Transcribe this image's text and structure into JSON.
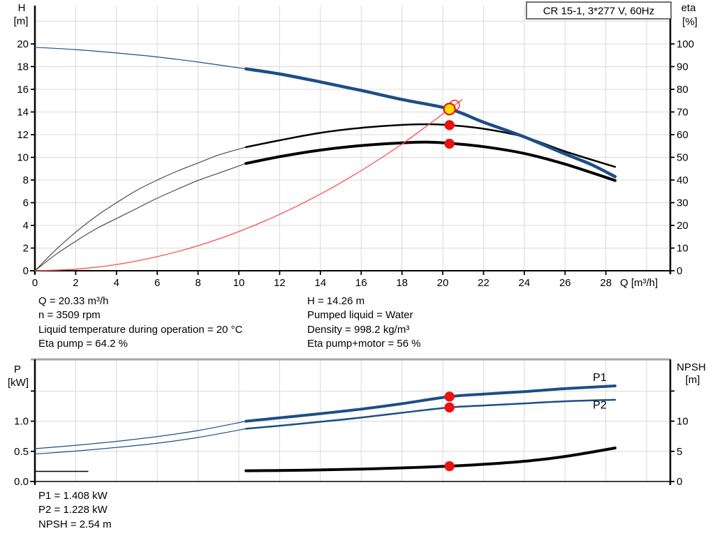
{
  "annotations": {
    "mid_left": [
      "Q = 20.33 m³/h",
      "n = 3509 rpm",
      "Liquid temperature during operation = 20 °C",
      "Eta pump = 64.2 %"
    ],
    "mid_right": [
      "H = 14.26 m",
      "Pumped liquid = Water",
      "Density = 998.2 kg/m³",
      "Eta pump+motor = 56 %"
    ],
    "bottom": [
      "P1 = 1.408 kW",
      "P2 = 1.228 kW",
      "NPSH = 2.54 m"
    ]
  },
  "colors": {
    "curve_navy": "#1c4e87",
    "curve_black": "#000000",
    "curve_gray": "#4a4a4a",
    "system_red": "#ff4d4d",
    "dot_red": "#ee1111",
    "duty_yellow": "#ffdf00",
    "grid": "#d9d9d9",
    "top_border_gray": "#a6a6a6",
    "label_blue": "#2a5d9f"
  },
  "chart_data": [
    {
      "id": "head-efficiency-chart",
      "type": "line",
      "title_box": "CR 15-1, 3*277 V, 60Hz",
      "x_axis": {
        "label": "Q [m³/h]",
        "min": 0,
        "max": 31.16,
        "ticks": [
          {
            "v": 0,
            "t": "0"
          },
          {
            "v": 2,
            "t": "2"
          },
          {
            "v": 4,
            "t": "4"
          },
          {
            "v": 6,
            "t": "6"
          },
          {
            "v": 8,
            "t": "8"
          },
          {
            "v": 10,
            "t": "10"
          },
          {
            "v": 12,
            "t": "12"
          },
          {
            "v": 14,
            "t": "14"
          },
          {
            "v": 16,
            "t": "16"
          },
          {
            "v": 18,
            "t": "18"
          },
          {
            "v": 20,
            "t": "20"
          },
          {
            "v": 22,
            "t": "22"
          },
          {
            "v": 24,
            "t": "24"
          },
          {
            "v": 26,
            "t": "26"
          },
          {
            "v": 28,
            "t": "28"
          }
        ],
        "grid": [
          2,
          4,
          6,
          8,
          10,
          12,
          14,
          16,
          18,
          20,
          22,
          24,
          26,
          28,
          30
        ]
      },
      "left_axis": {
        "name": "H",
        "unit": "[m]",
        "min": 0,
        "max": 23.38,
        "ticks": [
          {
            "v": 0,
            "t": "0"
          },
          {
            "v": 2,
            "t": "2"
          },
          {
            "v": 4,
            "t": "4"
          },
          {
            "v": 6,
            "t": "6"
          },
          {
            "v": 8,
            "t": "8"
          },
          {
            "v": 10,
            "t": "10"
          },
          {
            "v": 12,
            "t": "12"
          },
          {
            "v": 14,
            "t": "14"
          },
          {
            "v": 16,
            "t": "16"
          },
          {
            "v": 18,
            "t": "18"
          },
          {
            "v": 20,
            "t": "20"
          }
        ],
        "grid": [
          2,
          4,
          6,
          8,
          10,
          12,
          14,
          16,
          18,
          20,
          22
        ]
      },
      "right_axis": {
        "name": "eta",
        "unit": "[%]",
        "min": 0,
        "max": 116.9,
        "ticks": [
          {
            "v": 0,
            "t": "0"
          },
          {
            "v": 10,
            "t": "10"
          },
          {
            "v": 20,
            "t": "20"
          },
          {
            "v": 30,
            "t": "30"
          },
          {
            "v": 40,
            "t": "40"
          },
          {
            "v": 50,
            "t": "50"
          },
          {
            "v": 60,
            "t": "60"
          },
          {
            "v": 70,
            "t": "70"
          },
          {
            "v": 80,
            "t": "80"
          },
          {
            "v": 90,
            "t": "90"
          },
          {
            "v": 100,
            "t": "100"
          }
        ]
      },
      "series": [
        {
          "name": "head-curve-extension",
          "axis": "left",
          "color": "#1c4e87",
          "width": 1.2,
          "points": [
            [
              0,
              19.7
            ],
            [
              2,
              19.5
            ],
            [
              4,
              19.2
            ],
            [
              6,
              18.85
            ],
            [
              8,
              18.4
            ],
            [
              10.35,
              17.8
            ]
          ]
        },
        {
          "name": "eta-pump-curve-extension",
          "axis": "right",
          "color": "#4a4a4a",
          "width": 1.2,
          "points": [
            [
              0,
              0
            ],
            [
              1,
              9
            ],
            [
              2,
              17
            ],
            [
              3,
              24
            ],
            [
              4,
              30
            ],
            [
              5,
              35.5
            ],
            [
              6,
              40
            ],
            [
              7,
              44
            ],
            [
              8,
              47.5
            ],
            [
              9,
              51
            ],
            [
              10.35,
              54.5
            ]
          ]
        },
        {
          "name": "eta-pump-motor-curve-extension",
          "axis": "right",
          "color": "#4a4a4a",
          "width": 1.2,
          "points": [
            [
              0,
              0
            ],
            [
              1,
              7
            ],
            [
              2,
              13
            ],
            [
              3,
              18.5
            ],
            [
              4,
              23
            ],
            [
              5,
              27.5
            ],
            [
              6,
              32
            ],
            [
              7,
              36
            ],
            [
              8,
              39.8
            ],
            [
              9,
              43
            ],
            [
              10.35,
              47.3
            ]
          ]
        },
        {
          "name": "eta-pump-curve",
          "axis": "right",
          "color": "#000000",
          "width": 2.5,
          "points": [
            [
              10.35,
              54.5
            ],
            [
              12,
              57.5
            ],
            [
              14,
              60.8
            ],
            [
              16,
              63
            ],
            [
              18,
              64.3
            ],
            [
              19.3,
              64.6
            ],
            [
              20.33,
              64.2
            ],
            [
              22,
              62.6
            ],
            [
              24,
              59
            ],
            [
              26,
              52.6
            ],
            [
              28.45,
              45.8
            ]
          ]
        },
        {
          "name": "eta-pump-motor-curve",
          "axis": "right",
          "color": "#000000",
          "width": 4,
          "points": [
            [
              10.35,
              47.3
            ],
            [
              12,
              50.3
            ],
            [
              14,
              53.2
            ],
            [
              16,
              55.2
            ],
            [
              18,
              56.4
            ],
            [
              19.3,
              56.7
            ],
            [
              20.33,
              56.2
            ],
            [
              22,
              54.7
            ],
            [
              24,
              51.7
            ],
            [
              26,
              47
            ],
            [
              28.45,
              39.8
            ]
          ]
        },
        {
          "name": "head-curve",
          "axis": "left",
          "color": "#1c4e87",
          "width": 4.5,
          "points": [
            [
              10.35,
              17.8
            ],
            [
              12,
              17.35
            ],
            [
              14,
              16.65
            ],
            [
              16,
              15.9
            ],
            [
              18,
              15.1
            ],
            [
              20.33,
              14.26
            ],
            [
              22,
              13.1
            ],
            [
              24,
              11.8
            ],
            [
              26,
              10.3
            ],
            [
              27.3,
              9.35
            ],
            [
              28.45,
              8.3
            ]
          ]
        },
        {
          "name": "system-curve",
          "axis": "left",
          "color": "#ff4d4d",
          "width": 1.3,
          "points": [
            [
              0,
              0
            ],
            [
              2,
              0.14
            ],
            [
              4,
              0.55
            ],
            [
              6,
              1.24
            ],
            [
              8,
              2.21
            ],
            [
              10,
              3.45
            ],
            [
              12,
              4.97
            ],
            [
              14,
              6.76
            ],
            [
              16,
              8.83
            ],
            [
              18,
              11.17
            ],
            [
              20.33,
              14.26
            ],
            [
              20.95,
              15.1
            ]
          ]
        }
      ],
      "markers": [
        {
          "name": "eta-pump-duty-dot",
          "style": "dot",
          "q": 20.33,
          "axis": "right",
          "v": 64.2
        },
        {
          "name": "eta-pump-motor-duty-dot",
          "style": "dot",
          "q": 20.33,
          "axis": "right",
          "v": 56.0
        },
        {
          "name": "requested-duty-circle",
          "style": "ring",
          "q": 20.58,
          "axis": "left",
          "v": 14.6
        },
        {
          "name": "duty-point",
          "style": "duty",
          "q": 20.33,
          "axis": "left",
          "v": 14.26
        }
      ],
      "labels": []
    },
    {
      "id": "power-npsh-chart",
      "type": "line",
      "x_axis": {
        "label": "",
        "min": 0,
        "max": 31.16,
        "ticks": [],
        "grid": [
          2,
          4,
          6,
          8,
          10,
          12,
          14,
          16,
          18,
          20,
          22,
          24,
          26,
          28,
          30
        ]
      },
      "left_axis": {
        "name": "P",
        "unit": "[kW]",
        "min": 0,
        "max": 2.025,
        "ticks": [
          {
            "v": 0,
            "t": "0.0"
          },
          {
            "v": 0.5,
            "t": "0.5"
          },
          {
            "v": 1,
            "t": "1.0"
          },
          {
            "v": 1.5,
            "t": ""
          }
        ],
        "grid": [
          0.5,
          1,
          1.5
        ]
      },
      "right_axis": {
        "name": "NPSH",
        "unit": "[m]",
        "min": 0,
        "max": 20.25,
        "ticks": [
          {
            "v": 0,
            "t": "0"
          },
          {
            "v": 5,
            "t": "5"
          },
          {
            "v": 10,
            "t": "10"
          },
          {
            "v": 15,
            "t": ""
          }
        ]
      },
      "series": [
        {
          "name": "p1-curve-extension",
          "axis": "left",
          "color": "#1c4e87",
          "width": 1.2,
          "points": [
            [
              0,
              0.545
            ],
            [
              2,
              0.6
            ],
            [
              4,
              0.665
            ],
            [
              6,
              0.745
            ],
            [
              8,
              0.845
            ],
            [
              10.35,
              1.0
            ]
          ]
        },
        {
          "name": "p2-curve-extension",
          "axis": "left",
          "color": "#1c4e87",
          "width": 1.2,
          "points": [
            [
              0,
              0.455
            ],
            [
              2,
              0.505
            ],
            [
              4,
              0.565
            ],
            [
              6,
              0.635
            ],
            [
              8,
              0.73
            ],
            [
              10.35,
              0.875
            ]
          ]
        },
        {
          "name": "p1-curve",
          "axis": "left",
          "color": "#1c4e87",
          "width": 4,
          "points": [
            [
              10.35,
              1.0
            ],
            [
              12,
              1.055
            ],
            [
              14,
              1.125
            ],
            [
              16,
              1.2
            ],
            [
              18,
              1.29
            ],
            [
              20.33,
              1.408
            ],
            [
              22,
              1.45
            ],
            [
              24,
              1.49
            ],
            [
              26,
              1.54
            ],
            [
              28.45,
              1.585
            ]
          ]
        },
        {
          "name": "p2-curve",
          "axis": "left",
          "color": "#1c4e87",
          "width": 2.5,
          "points": [
            [
              10.35,
              0.875
            ],
            [
              12,
              0.925
            ],
            [
              14,
              0.99
            ],
            [
              16,
              1.06
            ],
            [
              18,
              1.14
            ],
            [
              20.33,
              1.228
            ],
            [
              22,
              1.26
            ],
            [
              24,
              1.295
            ],
            [
              26,
              1.33
            ],
            [
              28.45,
              1.355
            ]
          ]
        },
        {
          "name": "npsh-curve-extension",
          "axis": "right",
          "color": "#000000",
          "width": 1.5,
          "points": [
            [
              0,
              1.68
            ],
            [
              2.6,
              1.68
            ]
          ]
        },
        {
          "name": "npsh-curve",
          "axis": "right",
          "color": "#000000",
          "width": 4,
          "points": [
            [
              10.35,
              1.78
            ],
            [
              12,
              1.83
            ],
            [
              14,
              1.92
            ],
            [
              16,
              2.06
            ],
            [
              18,
              2.26
            ],
            [
              20.33,
              2.54
            ],
            [
              22,
              2.85
            ],
            [
              24,
              3.35
            ],
            [
              26,
              4.15
            ],
            [
              28.45,
              5.55
            ]
          ]
        }
      ],
      "markers": [
        {
          "name": "p1-duty-dot",
          "style": "dot",
          "q": 20.33,
          "axis": "left",
          "v": 1.408
        },
        {
          "name": "p2-duty-dot",
          "style": "dot",
          "q": 20.33,
          "axis": "left",
          "v": 1.228
        },
        {
          "name": "npsh-duty-dot",
          "style": "dot",
          "q": 20.33,
          "axis": "right",
          "v": 2.54
        }
      ],
      "labels": [
        {
          "name": "p1-curve-label",
          "text": "P1",
          "q": 27.7,
          "axis": "left",
          "v": 1.73,
          "color": "#2a5d9f"
        },
        {
          "name": "p2-curve-label",
          "text": "P2",
          "q": 27.7,
          "axis": "left",
          "v": 1.27,
          "color": "#2a5d9f"
        }
      ]
    }
  ]
}
